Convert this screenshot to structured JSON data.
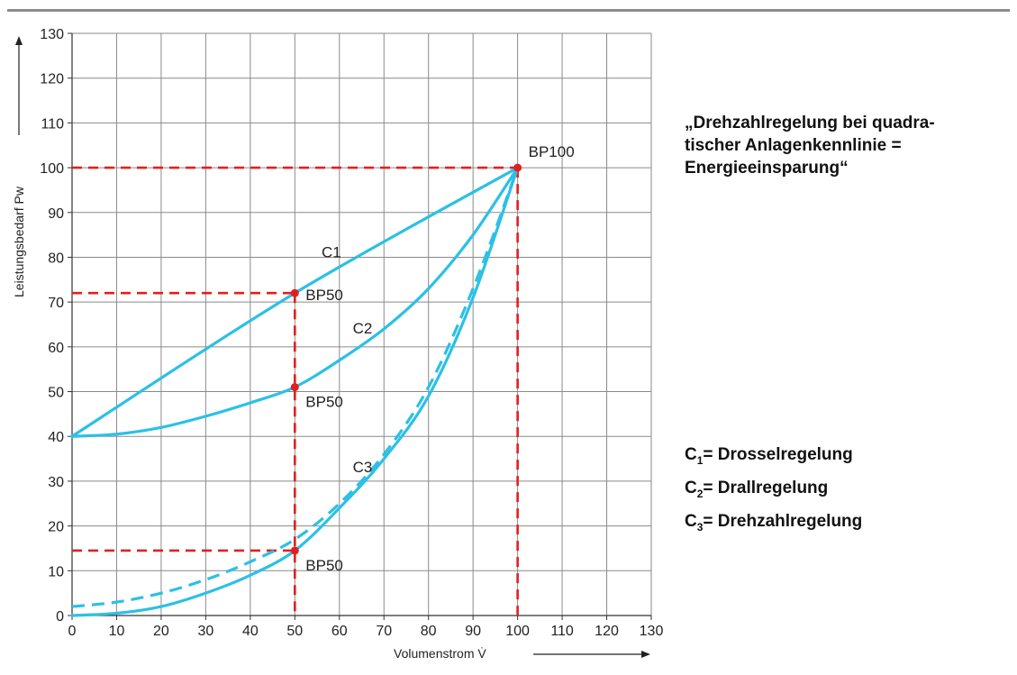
{
  "title_lines": [
    "„Drehzahlregelung bei quadra-",
    "tischer Anlagenkennlinie =",
    "Energieeinsparung“"
  ],
  "legend": [
    {
      "prefix": "C",
      "sub": "1",
      "text": "= Drosselregelung"
    },
    {
      "prefix": "C",
      "sub": "2",
      "text": "= Drallregelung"
    },
    {
      "prefix": "C",
      "sub": "3",
      "text": "= Drehzahlregelung"
    }
  ],
  "chart_data": {
    "type": "line",
    "xlabel": "Volumenstrom V̇",
    "ylabel": "Leistungsbedarf Pw",
    "xlim": [
      0,
      130
    ],
    "ylim": [
      0,
      130
    ],
    "xticks": [
      0,
      10,
      20,
      30,
      40,
      50,
      60,
      70,
      80,
      90,
      100,
      110,
      120,
      130
    ],
    "yticks": [
      0,
      10,
      20,
      30,
      40,
      50,
      60,
      70,
      80,
      90,
      100,
      110,
      120,
      130
    ],
    "grid": true,
    "colors": {
      "curve": "#2cc0e6",
      "reference": "#e02020",
      "grid": "#8a8a8a"
    },
    "series": [
      {
        "name": "C1",
        "style": "solid",
        "x": [
          0,
          50,
          100
        ],
        "y": [
          40,
          72,
          100
        ]
      },
      {
        "name": "C2",
        "style": "solid",
        "x": [
          0,
          10,
          20,
          30,
          40,
          50,
          60,
          70,
          80,
          90,
          100
        ],
        "y": [
          40,
          40.5,
          42,
          44.5,
          47.5,
          51,
          57,
          64,
          73,
          85,
          100
        ]
      },
      {
        "name": "C3",
        "style": "solid",
        "x": [
          0,
          10,
          20,
          30,
          40,
          50,
          60,
          70,
          80,
          90,
          100
        ],
        "y": [
          0,
          0.5,
          2,
          5,
          9,
          14.5,
          24,
          35,
          49,
          71,
          100
        ]
      },
      {
        "name": "",
        "style": "dashed",
        "x": [
          0,
          10,
          20,
          30,
          40,
          50,
          60,
          70,
          80,
          90,
          100
        ],
        "y": [
          2,
          3,
          5,
          8,
          12,
          17,
          25,
          36,
          51,
          73,
          100
        ]
      }
    ],
    "curve_labels": [
      {
        "text": "C1",
        "x": 56,
        "y": 80
      },
      {
        "text": "C2",
        "x": 63,
        "y": 63
      },
      {
        "text": "C3",
        "x": 63,
        "y": 32
      }
    ],
    "points": [
      {
        "label": "BP100",
        "x": 100,
        "y": 100
      },
      {
        "label": "BP50",
        "x": 50,
        "y": 72
      },
      {
        "label": "BP50",
        "x": 50,
        "y": 51
      },
      {
        "label": "BP50",
        "x": 50,
        "y": 14.5
      }
    ],
    "reference_lines": [
      {
        "from": [
          0,
          100
        ],
        "to": [
          100,
          100
        ]
      },
      {
        "from": [
          100,
          100
        ],
        "to": [
          100,
          0
        ]
      },
      {
        "from": [
          0,
          72
        ],
        "to": [
          50,
          72
        ]
      },
      {
        "from": [
          50,
          72
        ],
        "to": [
          50,
          0
        ]
      },
      {
        "from": [
          0,
          14.5
        ],
        "to": [
          50,
          14.5
        ]
      }
    ]
  }
}
